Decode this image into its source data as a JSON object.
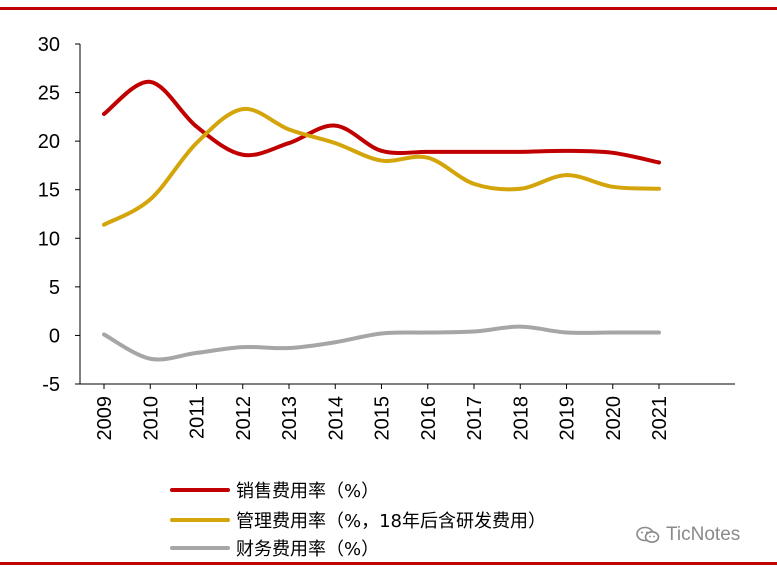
{
  "theme": {
    "rule_color": "#c00000",
    "axis_color": "#000000"
  },
  "chart_data": {
    "type": "line",
    "x": [
      "2009",
      "2010",
      "2011",
      "2012",
      "2013",
      "2014",
      "2015",
      "2016",
      "2017",
      "2018",
      "2019",
      "2020",
      "2021"
    ],
    "ylim": [
      -5,
      30
    ],
    "yticks": [
      30,
      25,
      20,
      15,
      10,
      5,
      0,
      -5
    ],
    "ytick_labels": [
      "30",
      "25",
      "20",
      "15",
      "10",
      "5",
      "0",
      "-5"
    ],
    "series": [
      {
        "name": "销售费用率（%）",
        "color": "#c00000",
        "values": [
          22.8,
          26.1,
          21.5,
          18.6,
          19.8,
          21.6,
          19.0,
          18.9,
          18.9,
          18.9,
          19.0,
          18.8,
          17.8
        ]
      },
      {
        "name": "管理费用率（%，18年后含研发费用）",
        "color": "#d4a50a",
        "values": [
          11.4,
          14.0,
          19.8,
          23.3,
          21.2,
          19.8,
          18.0,
          18.3,
          15.6,
          15.1,
          16.5,
          15.3,
          15.1
        ]
      },
      {
        "name": "财务费用率（%）",
        "color": "#a6a6a6",
        "values": [
          0.1,
          -2.4,
          -1.8,
          -1.2,
          -1.3,
          -0.7,
          0.2,
          0.3,
          0.4,
          0.9,
          0.3,
          0.3,
          0.3
        ]
      }
    ]
  },
  "watermark": {
    "icon": "wechat-icon",
    "text": "TicNotes"
  }
}
